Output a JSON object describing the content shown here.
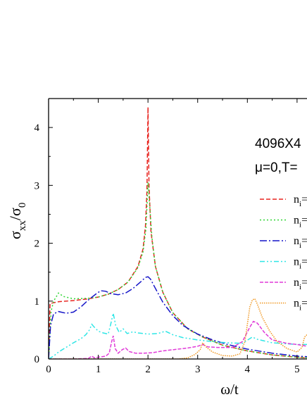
{
  "chart_data": {
    "type": "line",
    "xlabel": "ω/t",
    "ylabel_main": "σ",
    "ylabel_sub1": "xx",
    "ylabel_mid": "/σ",
    "ylabel_sub2": "0",
    "xlim": [
      0,
      5.2
    ],
    "ylim": [
      0,
      4.5
    ],
    "x_ticks": [
      0,
      1,
      2,
      3,
      4,
      5
    ],
    "y_ticks": [
      0,
      1,
      2,
      3,
      4
    ],
    "annotations": [
      "4096X4",
      "μ=0,T="
    ],
    "legend_labels": [
      "n",
      "n",
      "n",
      "n",
      "n",
      "n"
    ],
    "legend_subscript": "i",
    "legend_suffix": "=",
    "series": [
      {
        "color": "#e8231e",
        "dash": "6,3",
        "points": [
          [
            0.0,
            0.0
          ],
          [
            0.03,
            0.96
          ],
          [
            0.2,
            0.99
          ],
          [
            0.5,
            1.01
          ],
          [
            0.8,
            1.04
          ],
          [
            1.0,
            1.07
          ],
          [
            1.2,
            1.12
          ],
          [
            1.4,
            1.2
          ],
          [
            1.6,
            1.33
          ],
          [
            1.8,
            1.6
          ],
          [
            1.9,
            1.9
          ],
          [
            1.95,
            2.3
          ],
          [
            1.98,
            2.9
          ],
          [
            2.0,
            4.35
          ],
          [
            2.02,
            3.0
          ],
          [
            2.06,
            2.2
          ],
          [
            2.15,
            1.6
          ],
          [
            2.3,
            1.15
          ],
          [
            2.5,
            0.8
          ],
          [
            2.8,
            0.52
          ],
          [
            3.1,
            0.38
          ],
          [
            3.5,
            0.24
          ],
          [
            4.0,
            0.14
          ],
          [
            4.5,
            0.07
          ],
          [
            5.0,
            0.03
          ],
          [
            5.2,
            0.02
          ]
        ]
      },
      {
        "color": "#2fd633",
        "dash": "2,3",
        "points": [
          [
            0.0,
            0.0
          ],
          [
            0.05,
            0.82
          ],
          [
            0.1,
            1.0
          ],
          [
            0.2,
            1.14
          ],
          [
            0.3,
            1.08
          ],
          [
            0.5,
            1.04
          ],
          [
            0.8,
            1.05
          ],
          [
            1.0,
            1.07
          ],
          [
            1.2,
            1.12
          ],
          [
            1.4,
            1.2
          ],
          [
            1.6,
            1.33
          ],
          [
            1.8,
            1.58
          ],
          [
            1.9,
            1.85
          ],
          [
            1.96,
            2.25
          ],
          [
            2.0,
            3.05
          ],
          [
            2.03,
            2.7
          ],
          [
            2.08,
            2.1
          ],
          [
            2.15,
            1.6
          ],
          [
            2.3,
            1.15
          ],
          [
            2.5,
            0.8
          ],
          [
            2.8,
            0.52
          ],
          [
            3.1,
            0.38
          ],
          [
            3.5,
            0.24
          ],
          [
            4.0,
            0.14
          ],
          [
            4.5,
            0.07
          ],
          [
            5.0,
            0.03
          ],
          [
            5.2,
            0.02
          ]
        ]
      },
      {
        "color": "#1515c8",
        "dash": "10,3,2,3",
        "points": [
          [
            0.0,
            0.0
          ],
          [
            0.04,
            0.58
          ],
          [
            0.1,
            0.78
          ],
          [
            0.2,
            0.82
          ],
          [
            0.35,
            0.79
          ],
          [
            0.5,
            0.81
          ],
          [
            0.65,
            0.9
          ],
          [
            0.8,
            1.02
          ],
          [
            0.95,
            1.12
          ],
          [
            1.05,
            1.18
          ],
          [
            1.15,
            1.17
          ],
          [
            1.25,
            1.13
          ],
          [
            1.4,
            1.11
          ],
          [
            1.55,
            1.14
          ],
          [
            1.7,
            1.22
          ],
          [
            1.85,
            1.33
          ],
          [
            1.95,
            1.41
          ],
          [
            2.0,
            1.42
          ],
          [
            2.05,
            1.38
          ],
          [
            2.15,
            1.22
          ],
          [
            2.3,
            0.98
          ],
          [
            2.5,
            0.75
          ],
          [
            2.7,
            0.58
          ],
          [
            3.0,
            0.43
          ],
          [
            3.3,
            0.33
          ],
          [
            3.6,
            0.25
          ],
          [
            4.0,
            0.17
          ],
          [
            4.5,
            0.1
          ],
          [
            5.0,
            0.05
          ],
          [
            5.2,
            0.04
          ]
        ]
      },
      {
        "color": "#2ee6e6",
        "dash": "7,3,2,3,2,3",
        "points": [
          [
            0.0,
            0.0
          ],
          [
            0.1,
            0.05
          ],
          [
            0.2,
            0.12
          ],
          [
            0.35,
            0.2
          ],
          [
            0.5,
            0.28
          ],
          [
            0.65,
            0.35
          ],
          [
            0.75,
            0.42
          ],
          [
            0.82,
            0.5
          ],
          [
            0.87,
            0.6
          ],
          [
            0.92,
            0.55
          ],
          [
            1.0,
            0.48
          ],
          [
            1.1,
            0.45
          ],
          [
            1.2,
            0.43
          ],
          [
            1.25,
            0.6
          ],
          [
            1.3,
            0.79
          ],
          [
            1.35,
            0.58
          ],
          [
            1.42,
            0.46
          ],
          [
            1.5,
            0.52
          ],
          [
            1.58,
            0.44
          ],
          [
            1.7,
            0.47
          ],
          [
            1.8,
            0.45
          ],
          [
            2.0,
            0.43
          ],
          [
            2.2,
            0.44
          ],
          [
            2.35,
            0.48
          ],
          [
            2.5,
            0.42
          ],
          [
            2.7,
            0.37
          ],
          [
            3.0,
            0.33
          ],
          [
            3.3,
            0.3
          ],
          [
            3.6,
            0.28
          ],
          [
            3.9,
            0.27
          ],
          [
            4.1,
            0.38
          ],
          [
            4.2,
            0.34
          ],
          [
            4.5,
            0.28
          ],
          [
            5.0,
            0.25
          ],
          [
            5.2,
            0.25
          ]
        ]
      },
      {
        "color": "#e03ad8",
        "dash": "5,2",
        "points": [
          [
            0.0,
            0.0
          ],
          [
            0.5,
            0.0
          ],
          [
            0.8,
            0.01
          ],
          [
            0.87,
            0.05
          ],
          [
            0.92,
            0.02
          ],
          [
            1.0,
            0.03
          ],
          [
            1.15,
            0.05
          ],
          [
            1.22,
            0.1
          ],
          [
            1.27,
            0.3
          ],
          [
            1.3,
            0.4
          ],
          [
            1.34,
            0.18
          ],
          [
            1.4,
            0.1
          ],
          [
            1.48,
            0.16
          ],
          [
            1.55,
            0.19
          ],
          [
            1.62,
            0.13
          ],
          [
            1.75,
            0.1
          ],
          [
            1.9,
            0.1
          ],
          [
            2.1,
            0.11
          ],
          [
            2.3,
            0.14
          ],
          [
            2.6,
            0.17
          ],
          [
            2.8,
            0.19
          ],
          [
            3.0,
            0.22
          ],
          [
            3.1,
            0.25
          ],
          [
            3.2,
            0.21
          ],
          [
            3.4,
            0.2
          ],
          [
            3.7,
            0.2
          ],
          [
            3.9,
            0.3
          ],
          [
            4.05,
            0.55
          ],
          [
            4.12,
            0.65
          ],
          [
            4.2,
            0.62
          ],
          [
            4.35,
            0.45
          ],
          [
            4.5,
            0.33
          ],
          [
            4.8,
            0.27
          ],
          [
            5.0,
            0.25
          ],
          [
            5.2,
            0.22
          ]
        ]
      },
      {
        "color": "#f0961e",
        "dash": "1.5,1.5",
        "points": [
          [
            0.0,
            0.0
          ],
          [
            2.6,
            0.0
          ],
          [
            2.8,
            0.02
          ],
          [
            2.95,
            0.08
          ],
          [
            3.05,
            0.16
          ],
          [
            3.1,
            0.28
          ],
          [
            3.18,
            0.2
          ],
          [
            3.3,
            0.12
          ],
          [
            3.5,
            0.06
          ],
          [
            3.7,
            0.05
          ],
          [
            3.85,
            0.09
          ],
          [
            3.95,
            0.3
          ],
          [
            4.0,
            0.6
          ],
          [
            4.05,
            0.9
          ],
          [
            4.1,
            1.02
          ],
          [
            4.15,
            1.04
          ],
          [
            4.2,
            0.95
          ],
          [
            4.3,
            0.72
          ],
          [
            4.45,
            0.48
          ],
          [
            4.6,
            0.3
          ],
          [
            4.8,
            0.18
          ],
          [
            5.0,
            0.12
          ],
          [
            5.1,
            0.2
          ],
          [
            5.15,
            0.38
          ],
          [
            5.2,
            0.42
          ]
        ]
      }
    ]
  }
}
